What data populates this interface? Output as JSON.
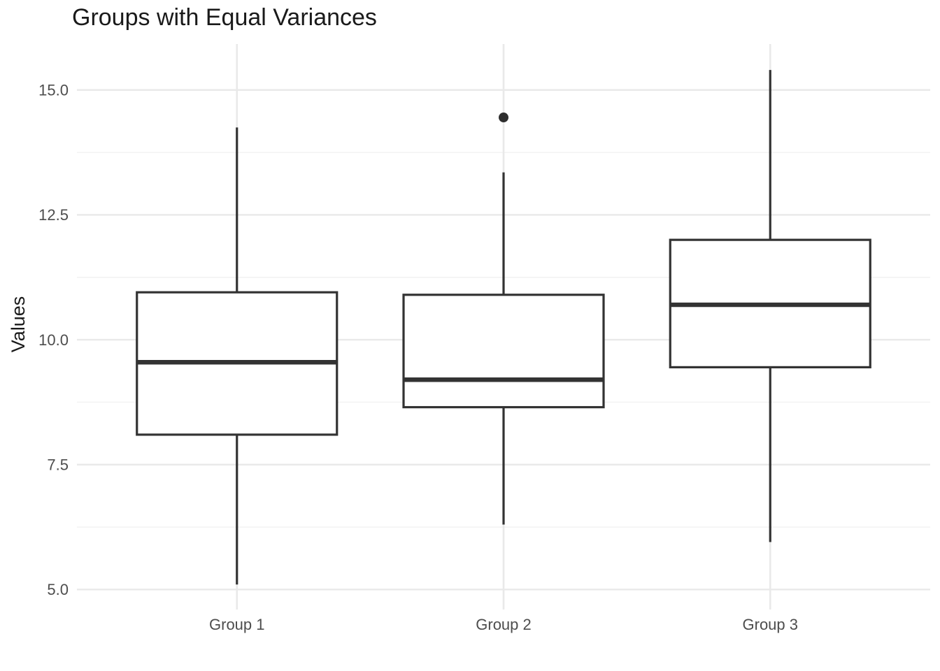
{
  "chart_data": {
    "type": "boxplot",
    "title": "Groups with Equal Variances",
    "xlabel": "",
    "ylabel": "Values",
    "categories": [
      "Group 1",
      "Group 2",
      "Group 3"
    ],
    "series": [
      {
        "name": "Group 1",
        "min": 5.1,
        "q1": 8.1,
        "median": 9.55,
        "q3": 10.95,
        "max": 14.25,
        "outliers": []
      },
      {
        "name": "Group 2",
        "min": 6.3,
        "q1": 8.65,
        "median": 9.2,
        "q3": 10.9,
        "max": 13.35,
        "outliers": [
          14.45
        ]
      },
      {
        "name": "Group 3",
        "min": 5.95,
        "q1": 9.45,
        "median": 10.7,
        "q3": 12.0,
        "max": 15.4,
        "outliers": []
      }
    ],
    "y_ticks": [
      5.0,
      7.5,
      10.0,
      12.5,
      15.0
    ],
    "y_tick_labels": [
      "5.0",
      "7.5",
      "10.0",
      "12.5",
      "15.0"
    ],
    "y_minor_ticks": [
      6.25,
      8.75,
      11.25,
      13.75
    ],
    "ylim": [
      4.6,
      15.92
    ],
    "grid": true,
    "legend": false,
    "colors": {
      "box_border": "#333333",
      "median_line": "#333333",
      "whisker": "#333333",
      "outlier": "#2e2e2e",
      "box_fill": "#ffffff",
      "grid_major": "#e9e9e9",
      "grid_minor": "#f2f2f2",
      "tick_label": "#4d4d4d",
      "title_text": "#1a1a1a",
      "background": "#ffffff"
    }
  }
}
